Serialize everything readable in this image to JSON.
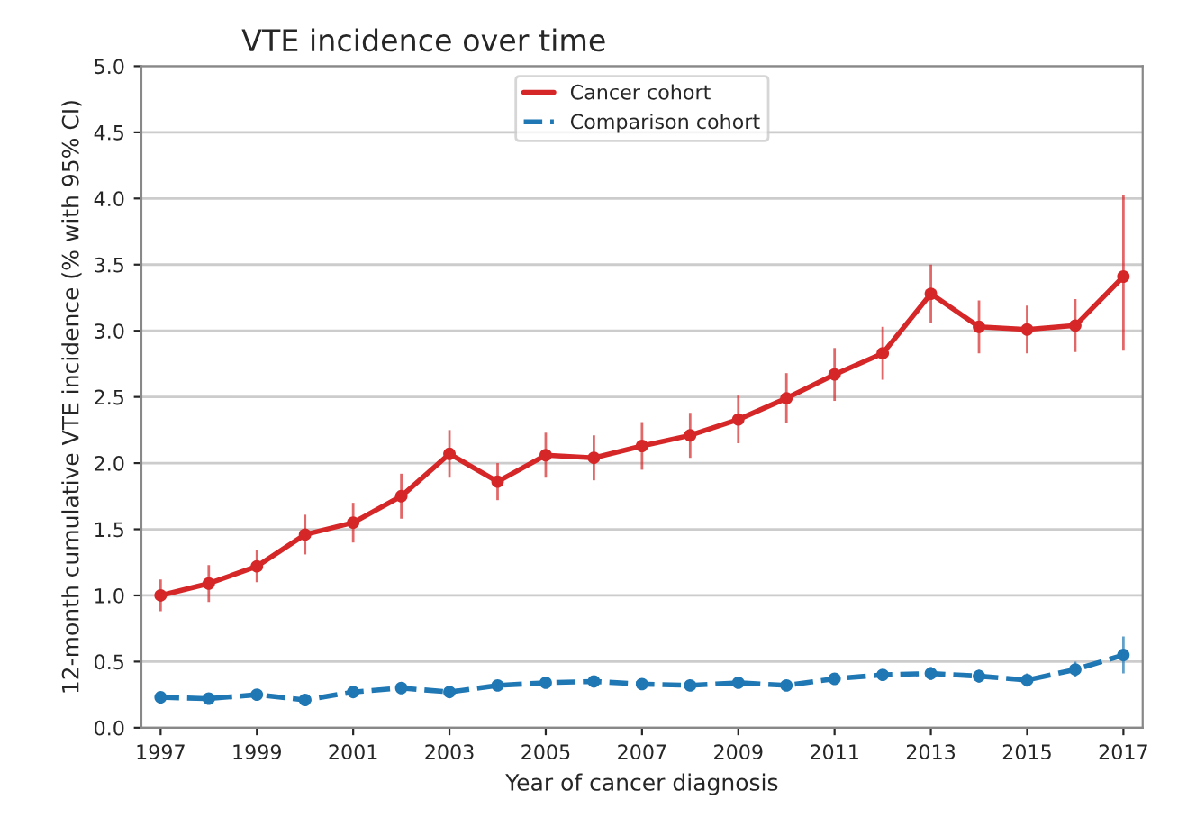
{
  "chart_data": {
    "type": "line",
    "title": "VTE incidence over time",
    "xlabel": "Year of cancer diagnosis",
    "ylabel": "12-month cumulative VTE incidence (% with 95% CI)",
    "x": [
      1997,
      1998,
      1999,
      2000,
      2001,
      2002,
      2003,
      2004,
      2005,
      2006,
      2007,
      2008,
      2009,
      2010,
      2011,
      2012,
      2013,
      2014,
      2015,
      2016,
      2017
    ],
    "series": [
      {
        "name": "Cancer cohort",
        "color": "#d62728",
        "line_style": "solid",
        "values": [
          1.0,
          1.09,
          1.22,
          1.46,
          1.55,
          1.75,
          2.07,
          1.86,
          2.06,
          2.04,
          2.13,
          2.21,
          2.33,
          2.49,
          2.67,
          2.83,
          3.28,
          3.03,
          3.01,
          3.04,
          3.41
        ],
        "errors": [
          0.12,
          0.14,
          0.12,
          0.15,
          0.15,
          0.17,
          0.18,
          0.14,
          0.17,
          0.17,
          0.18,
          0.17,
          0.18,
          0.19,
          0.2,
          0.2,
          0.22,
          0.2,
          0.18,
          0.2,
          [
            2.85,
            4.03
          ]
        ]
      },
      {
        "name": "Comparison cohort",
        "color": "#1f77b4",
        "line_style": "dashed",
        "values": [
          0.23,
          0.22,
          0.25,
          0.21,
          0.27,
          0.3,
          0.27,
          0.32,
          0.34,
          0.35,
          0.33,
          0.32,
          0.34,
          0.32,
          0.37,
          0.4,
          0.41,
          0.39,
          0.36,
          0.44,
          0.55
        ],
        "errors": [
          0.03,
          0.03,
          0.03,
          0.03,
          0.03,
          0.04,
          0.03,
          0.04,
          0.04,
          0.04,
          0.04,
          0.04,
          0.04,
          0.04,
          0.04,
          0.04,
          0.05,
          0.05,
          0.05,
          0.06,
          0.14
        ]
      }
    ],
    "xlim": [
      1996.6,
      2017.4
    ],
    "xticks": [
      1997,
      1999,
      2001,
      2003,
      2005,
      2007,
      2009,
      2011,
      2013,
      2015,
      2017
    ],
    "ylim": [
      0,
      5
    ],
    "yticks": [
      {
        "value": 0,
        "label": "0.0"
      },
      {
        "value": 0.5,
        "label": "0.5"
      },
      {
        "value": 1,
        "label": "1.0"
      },
      {
        "value": 1.5,
        "label": "1.5"
      },
      {
        "value": 2,
        "label": "2.0"
      },
      {
        "value": 2.5,
        "label": "2.5"
      },
      {
        "value": 3,
        "label": "3.0"
      },
      {
        "value": 3.5,
        "label": "3.5"
      },
      {
        "value": 4,
        "label": "4.0"
      },
      {
        "value": 4.5,
        "label": "4.5"
      },
      {
        "value": 5,
        "label": "5.0"
      }
    ],
    "grid": "y",
    "legend": "top",
    "marker": "circle"
  }
}
